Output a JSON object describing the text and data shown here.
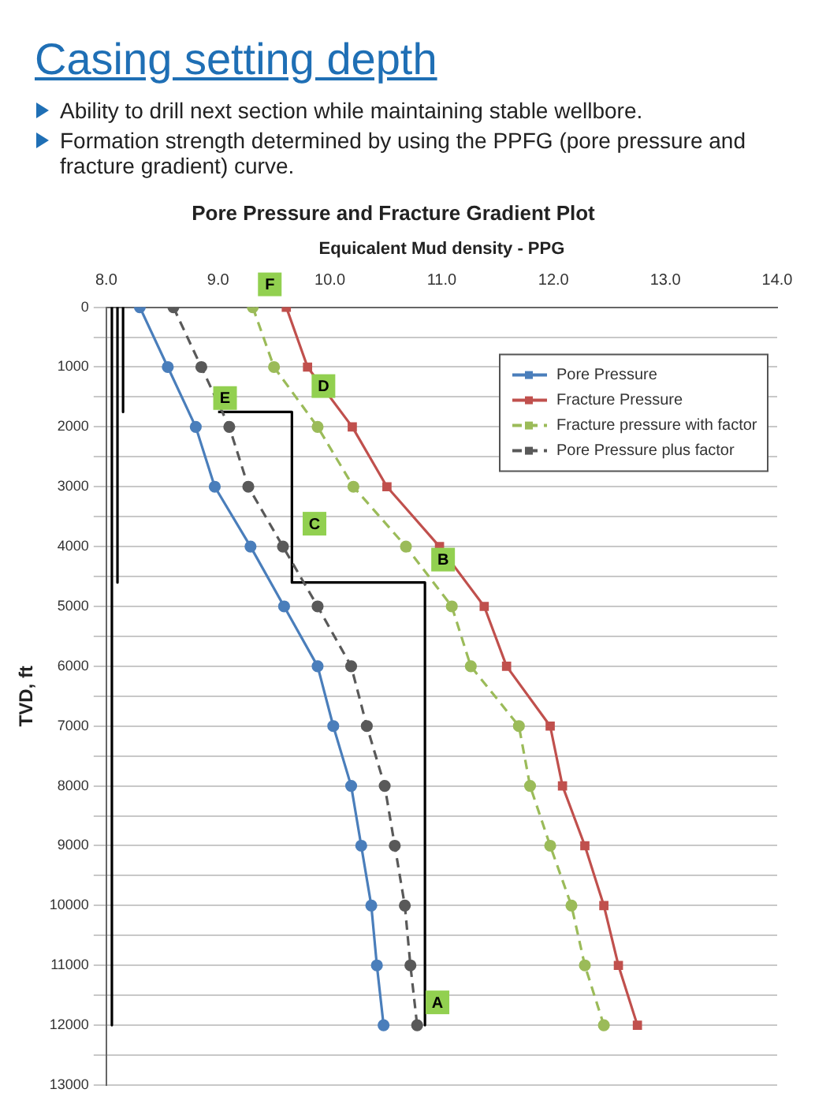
{
  "chart_data": {
    "type": "line",
    "title": "Pore Pressure and Fracture Gradient Plot",
    "xlabel": "Equicalent Mud density - PPG",
    "ylabel": "TVD, ft",
    "annotations": [
      "Casing setting depth",
      "Ability to drill next section while maintaining stable wellbore.",
      "Formation strength determined by using the PPFG (pore pressure and fracture gradient) curve.",
      {
        "text": "F",
        "x": 9.3,
        "y": 0
      },
      {
        "text": "E",
        "x": 8.9,
        "y": 1900
      },
      {
        "text": "D",
        "x": 9.78,
        "y": 1700
      },
      {
        "text": "C",
        "x": 9.7,
        "y": 4000
      },
      {
        "text": "B",
        "x": 10.85,
        "y": 4600
      },
      {
        "text": "A",
        "x": 10.8,
        "y": 12000
      }
    ],
    "xlim": [
      8,
      14
    ],
    "xticks": [
      {
        "value": 8,
        "label": "8.0"
      },
      {
        "value": 9,
        "label": "9.0"
      },
      {
        "value": 10,
        "label": "10.0"
      },
      {
        "value": 11,
        "label": "11.0"
      },
      {
        "value": 12,
        "label": "12.0"
      },
      {
        "value": 13,
        "label": "13.0"
      },
      {
        "value": 14,
        "label": "14.0"
      }
    ],
    "ylim": [
      13000,
      0
    ],
    "yticks": [
      0,
      {
        "value": 500,
        "label": null
      },
      1000,
      {
        "value": 1500,
        "label": null
      },
      2000,
      {
        "value": 2500,
        "label": null
      },
      3000,
      {
        "value": 3500,
        "label": null
      },
      4000,
      {
        "value": 4500,
        "label": null
      },
      5000,
      {
        "value": 5500,
        "label": null
      },
      6000,
      {
        "value": 6500,
        "label": null
      },
      7000,
      {
        "value": 7500,
        "label": null
      },
      8000,
      {
        "value": 8500,
        "label": null
      },
      9000,
      {
        "value": 9500,
        "label": null
      },
      10000,
      {
        "value": 10500,
        "label": null
      },
      11000,
      {
        "value": 11500,
        "label": null
      },
      12000,
      {
        "value": 12500,
        "label": null
      },
      13000
    ],
    "grid": "y",
    "legend": "top right",
    "series": [
      {
        "name": "Pore Pressure",
        "color": "#4a7ebb",
        "marker": "circle",
        "line_style": "solid",
        "x": [
          8.3,
          8.55,
          8.8,
          8.97,
          9.29,
          9.59,
          9.89,
          10.03,
          10.19,
          10.28,
          10.37,
          10.42,
          10.48
        ],
        "values": [
          0,
          1000,
          2000,
          3000,
          4000,
          5000,
          6000,
          7000,
          8000,
          9000,
          10000,
          11000,
          12000
        ]
      },
      {
        "name": "Fracture Pressure",
        "color": "#c0504d",
        "marker": "square",
        "line_style": "solid",
        "x": [
          9.61,
          9.8,
          10.2,
          10.51,
          10.98,
          11.38,
          11.58,
          11.97,
          12.08,
          12.28,
          12.45,
          12.58,
          12.75
        ],
        "values": [
          0,
          1000,
          2000,
          3000,
          4000,
          5000,
          6000,
          7000,
          8000,
          9000,
          10000,
          11000,
          12000
        ]
      },
      {
        "name": "Fracture pressure with factor",
        "color": "#9bbb59",
        "marker": "circle",
        "line_style": "dashed",
        "x": [
          9.31,
          9.5,
          9.89,
          10.21,
          10.68,
          11.09,
          11.26,
          11.69,
          11.79,
          11.97,
          12.16,
          12.28,
          12.45
        ],
        "values": [
          0,
          1000,
          2000,
          3000,
          4000,
          5000,
          6000,
          7000,
          8000,
          9000,
          10000,
          11000,
          12000
        ]
      },
      {
        "name": "Pore Pressure plus factor",
        "color": "#595959",
        "marker": "circle",
        "line_style": "dashed",
        "x": [
          8.6,
          8.85,
          9.1,
          9.27,
          9.58,
          9.89,
          10.19,
          10.33,
          10.49,
          10.58,
          10.67,
          10.72,
          10.78
        ],
        "values": [
          0,
          1000,
          2000,
          3000,
          4000,
          5000,
          6000,
          7000,
          8000,
          9000,
          10000,
          11000,
          12000
        ]
      },
      {
        "color": "#000000",
        "marker": "none",
        "line_style": "solid",
        "x": [
          9.0,
          9.66,
          9.66,
          10.85,
          10.85
        ],
        "values": [
          1750,
          1750,
          4600,
          4600,
          12000
        ]
      },
      {
        "color": "#000000",
        "marker": "none",
        "line_style": "solid",
        "x": [
          8.15,
          8.15
        ],
        "values": [
          0,
          1750
        ]
      },
      {
        "color": "#000000",
        "marker": "none",
        "line_style": "solid",
        "x": [
          8.1,
          8.1
        ],
        "values": [
          0,
          4600
        ]
      },
      {
        "color": "#000000",
        "marker": "none",
        "line_style": "solid",
        "x": [
          8.05,
          8.05
        ],
        "values": [
          0,
          12000
        ]
      }
    ]
  }
}
